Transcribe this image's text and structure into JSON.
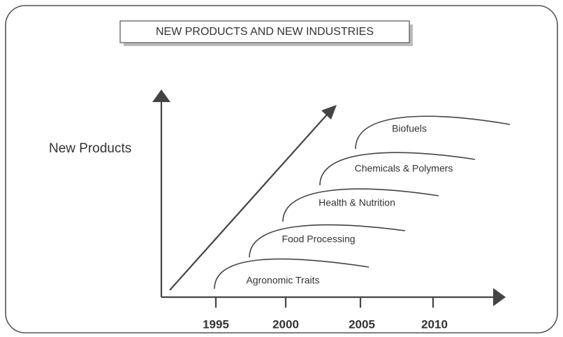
{
  "header": {
    "title": "NEW PRODUCTS AND NEW INDUSTRIES"
  },
  "y_axis": {
    "label": "New Products"
  },
  "x_axis": {
    "labels": [
      "1995",
      "2000",
      "2005",
      "2010"
    ]
  },
  "curves": [
    {
      "label": "Agronomic Traits"
    },
    {
      "label": "Food Processing"
    },
    {
      "label": "Health & Nutrition"
    },
    {
      "label": "Chemicals & Polymers"
    },
    {
      "label": "Biofuels"
    }
  ]
}
